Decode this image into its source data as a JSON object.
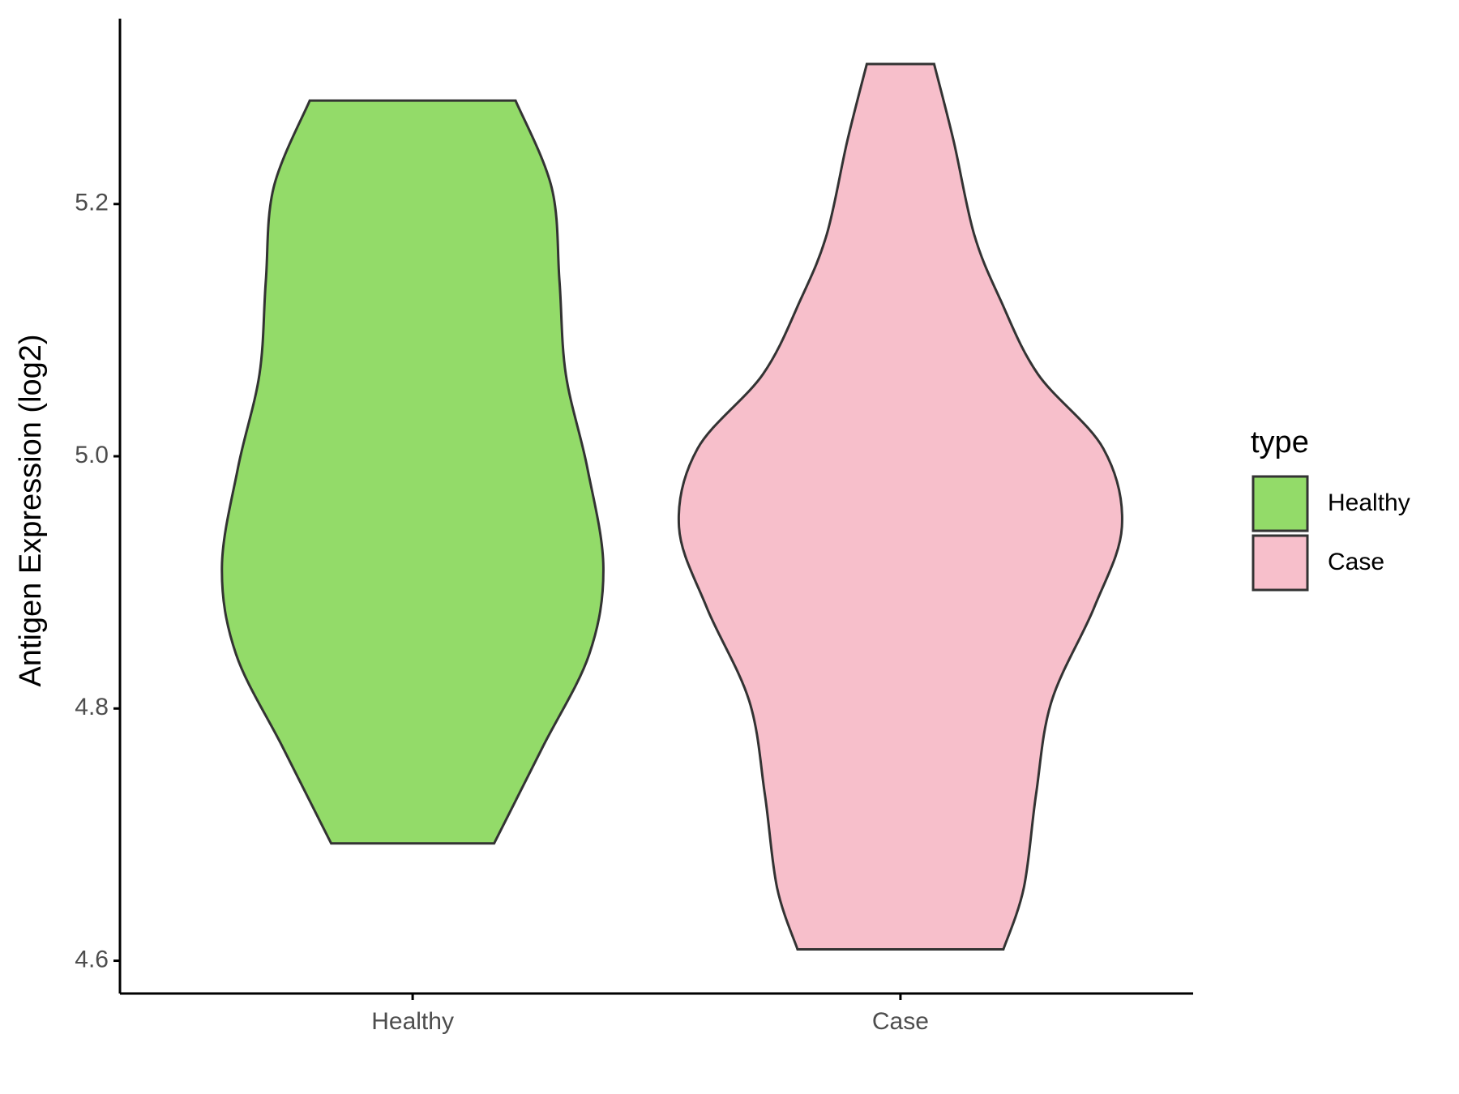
{
  "chart_data": {
    "type": "violin",
    "y_label": "Antigen Expression (log2)",
    "categories": [
      "Healthy",
      "Case"
    ],
    "ylim": [
      4.574,
      5.347
    ],
    "yticks": [
      {
        "value": 4.6,
        "label": "4.6"
      },
      {
        "value": 4.8,
        "label": "4.8"
      },
      {
        "value": 5.0,
        "label": "5.0"
      },
      {
        "value": 5.2,
        "label": "5.2"
      }
    ],
    "legend_title": "type",
    "legend_position": "right",
    "series": [
      {
        "name": "Healthy",
        "color": "#93db69",
        "y": [
          5.282,
          5.213,
          5.139,
          5.065,
          4.991,
          4.912,
          4.843,
          4.769,
          4.693
        ],
        "half_width": [
          0.211,
          0.285,
          0.301,
          0.314,
          0.358,
          0.391,
          0.362,
          0.266,
          0.167
        ]
      },
      {
        "name": "Case",
        "color": "#f7bfcb",
        "y": [
          5.311,
          5.25,
          5.176,
          5.124,
          5.065,
          5.006,
          4.944,
          4.88,
          4.806,
          4.732,
          4.658,
          4.609
        ],
        "half_width": [
          0.069,
          0.109,
          0.151,
          0.205,
          0.282,
          0.416,
          0.454,
          0.397,
          0.31,
          0.278,
          0.253,
          0.211
        ]
      }
    ]
  }
}
